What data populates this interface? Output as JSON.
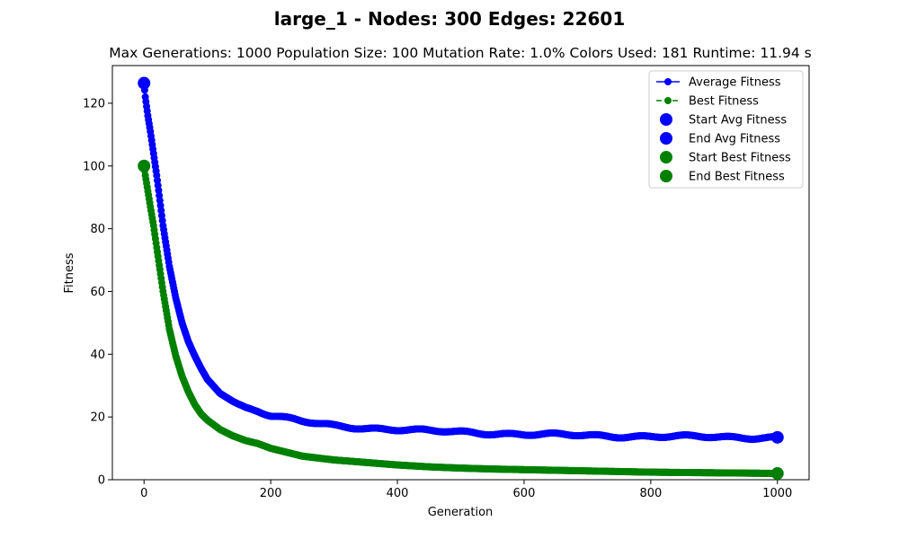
{
  "chart_data": {
    "type": "line",
    "title": "large_1 - Nodes: 300 Edges: 22601",
    "subtitle": "Max Generations: 1000  Population Size: 100  Mutation Rate: 1.0%  Colors Used: 181  Runtime: 11.94 s",
    "xlabel": "Generation",
    "ylabel": "Fitness",
    "xlim": [
      -50,
      1050
    ],
    "ylim": [
      0,
      132
    ],
    "xticks": [
      0,
      200,
      400,
      600,
      800,
      1000
    ],
    "yticks": [
      0,
      20,
      40,
      60,
      80,
      100,
      120
    ],
    "grid": false,
    "legend_position": "top-right",
    "series": [
      {
        "name": "Average Fitness",
        "color": "#0000ff",
        "marker": "circle",
        "line_style": "solid",
        "x": [
          0,
          2,
          4,
          6,
          8,
          10,
          15,
          20,
          25,
          30,
          40,
          50,
          60,
          70,
          80,
          90,
          100,
          120,
          140,
          160,
          180,
          200,
          250,
          300,
          350,
          400,
          450,
          500,
          550,
          600,
          650,
          700,
          750,
          800,
          850,
          900,
          950,
          1000
        ],
        "values": [
          126.4,
          122,
          119,
          116,
          113.5,
          111,
          104,
          97,
          89,
          81,
          68,
          58,
          50,
          44,
          39.5,
          35.5,
          32,
          27.5,
          25,
          23,
          22,
          20.5,
          18.5,
          17.2,
          16.5,
          16,
          15.5,
          15.2,
          14.8,
          14.5,
          14.3,
          14.1,
          13.9,
          13.8,
          13.7,
          13.6,
          13.5,
          13.5
        ]
      },
      {
        "name": "Best Fitness",
        "color": "#008000",
        "marker": "circle",
        "line_style": "dashed",
        "x": [
          0,
          2,
          4,
          6,
          8,
          10,
          15,
          20,
          25,
          30,
          40,
          50,
          60,
          70,
          80,
          90,
          100,
          120,
          140,
          160,
          180,
          200,
          250,
          300,
          350,
          400,
          450,
          500,
          550,
          600,
          650,
          700,
          750,
          800,
          850,
          900,
          950,
          1000
        ],
        "values": [
          100,
          97,
          94.5,
          92,
          89.5,
          87,
          81,
          74,
          67,
          60,
          48,
          39.5,
          33,
          28,
          24,
          21,
          19,
          16,
          14,
          12.5,
          11.5,
          10,
          7.5,
          6.3,
          5.5,
          4.7,
          4.1,
          3.7,
          3.4,
          3.2,
          3,
          2.8,
          2.6,
          2.4,
          2.3,
          2.2,
          2.1,
          2
        ]
      }
    ],
    "points": [
      {
        "name": "Start Avg Fitness",
        "color": "#0000ff",
        "x": 0,
        "y": 126.4
      },
      {
        "name": "End Avg Fitness",
        "color": "#0000ff",
        "x": 1000,
        "y": 13.5
      },
      {
        "name": "Start Best Fitness",
        "color": "#008000",
        "x": 0,
        "y": 100
      },
      {
        "name": "End Best Fitness",
        "color": "#008000",
        "x": 1000,
        "y": 2
      }
    ]
  }
}
